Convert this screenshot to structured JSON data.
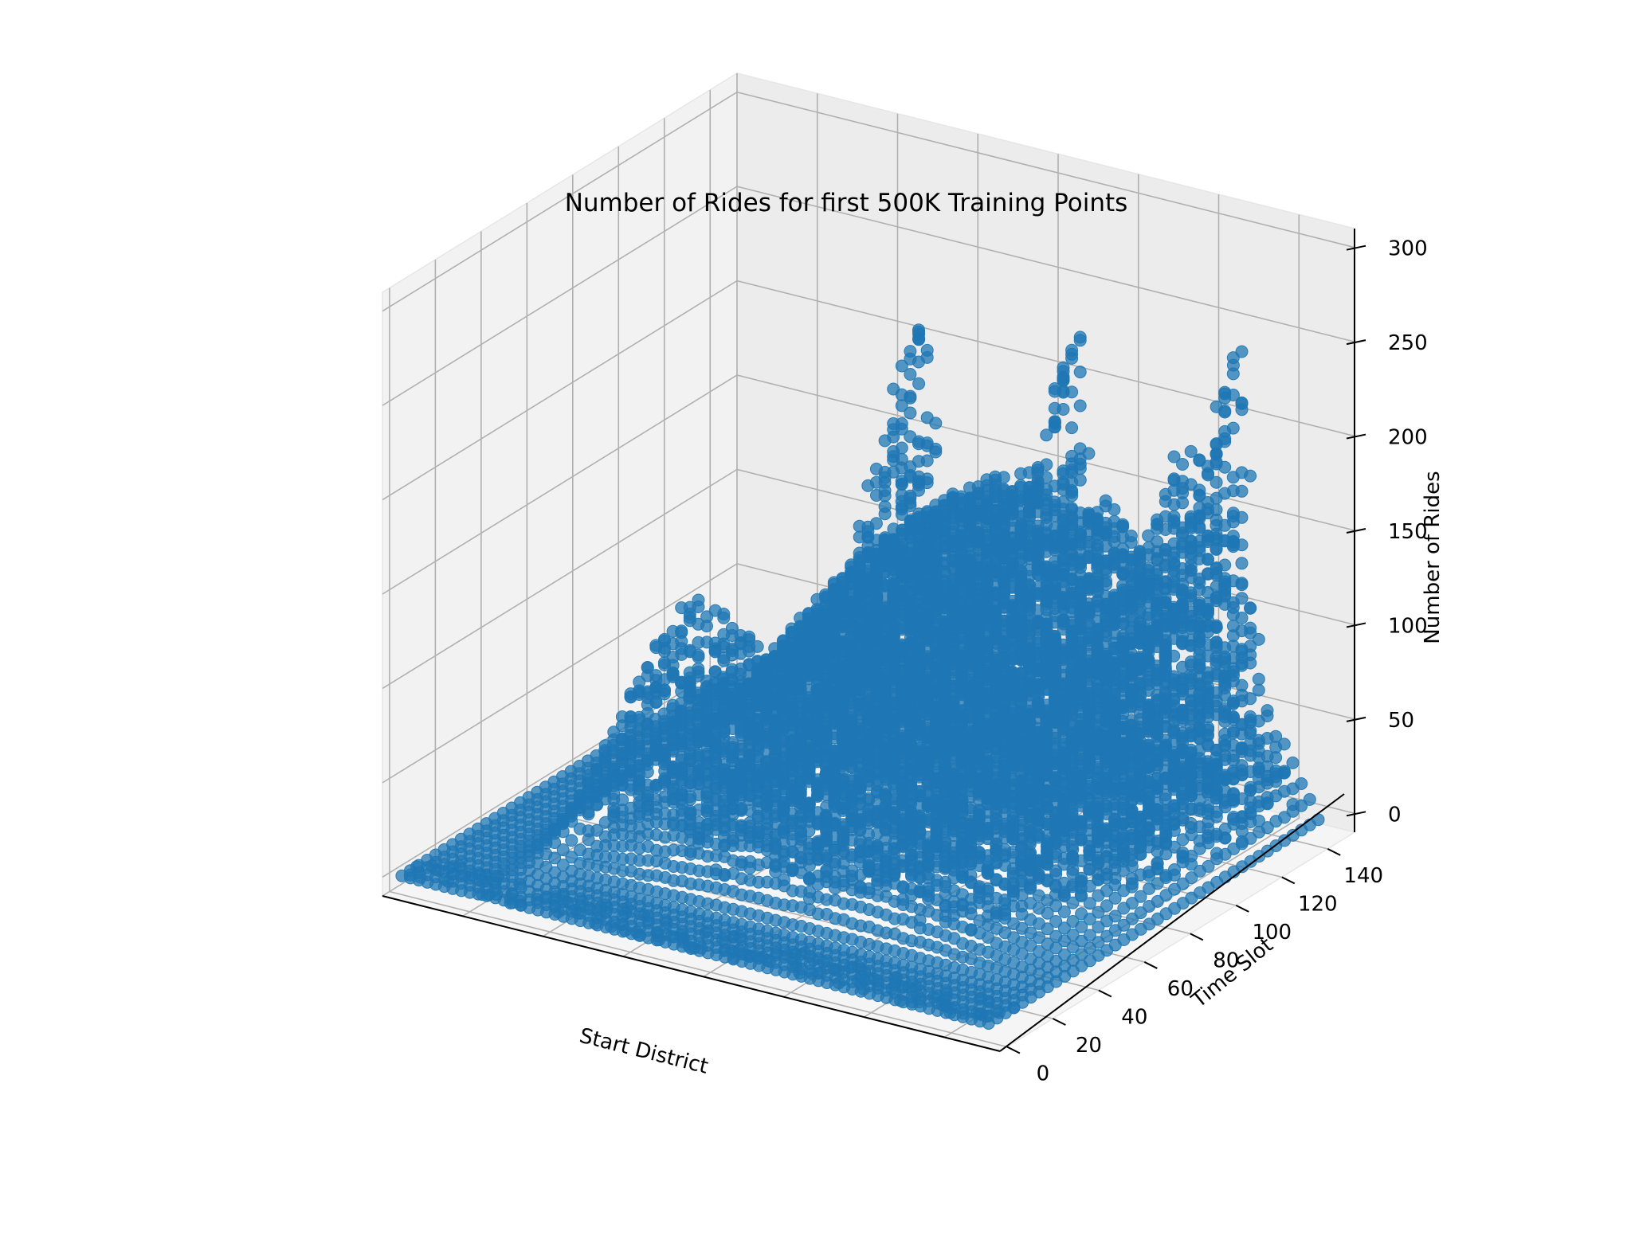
{
  "chart_data": {
    "type": "scatter",
    "projection": "3d",
    "title": "Number of Rides for first 500K Training Points",
    "xlabel": "Start District",
    "ylabel": "Time Slot",
    "zlabel": "Number of Rides",
    "x_ticks": [],
    "y_ticks": [
      "0",
      "20",
      "40",
      "60",
      "80",
      "100",
      "120",
      "140"
    ],
    "z_ticks": [
      "0",
      "50",
      "100",
      "150",
      "200",
      "250",
      "300"
    ],
    "ylim": [
      0,
      144
    ],
    "zlim": [
      -10,
      310
    ],
    "grid": true,
    "marker_color": "#1f77b4",
    "pane_color": "#f2f2f2",
    "series": [
      {
        "peaks": [
          {
            "district_frac": 0.33,
            "time_slot": 140,
            "rides": 230
          },
          {
            "district_frac": 0.58,
            "time_slot": 140,
            "rides": 235
          },
          {
            "district_frac": 0.84,
            "time_slot": 140,
            "rides": 250
          },
          {
            "district_frac": 0.17,
            "time_slot": 80,
            "rides": 95
          },
          {
            "district_frac": 0.82,
            "time_slot": 120,
            "rides": 200
          }
        ],
        "baseline_rides": 0,
        "plateau_rides": 150
      }
    ]
  }
}
